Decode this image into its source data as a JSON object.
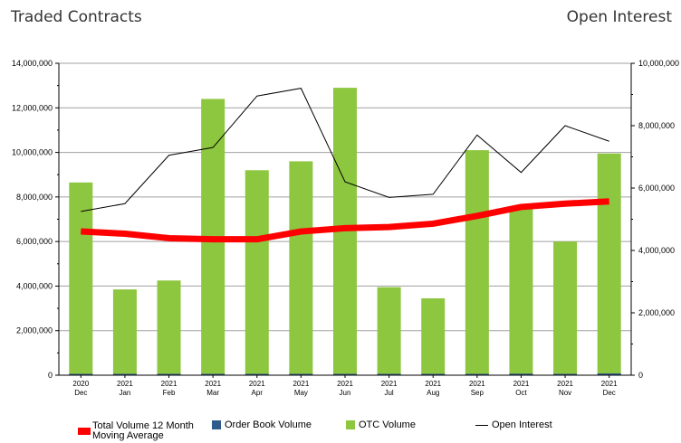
{
  "header": {
    "left_title": "Traded Contracts",
    "right_title": "Open Interest"
  },
  "chart_data": {
    "type": "bar",
    "categories": [
      [
        "2020",
        "Dec"
      ],
      [
        "2021",
        "Jan"
      ],
      [
        "2021",
        "Feb"
      ],
      [
        "2021",
        "Mar"
      ],
      [
        "2021",
        "Apr"
      ],
      [
        "2021",
        "May"
      ],
      [
        "2021",
        "Jun"
      ],
      [
        "2021",
        "Jul"
      ],
      [
        "2021",
        "Aug"
      ],
      [
        "2021",
        "Sep"
      ],
      [
        "2021",
        "Oct"
      ],
      [
        "2021",
        "Nov"
      ],
      [
        "2021",
        "Dec"
      ]
    ],
    "left_axis": {
      "min": 0,
      "max": 14000000,
      "ticks": [
        "0",
        "2,000,000",
        "4,000,000",
        "6,000,000",
        "8,000,000",
        "10,000,000",
        "12,000,000",
        "14,000,000"
      ]
    },
    "right_axis": {
      "min": 0,
      "max": 10000000,
      "ticks": [
        "0",
        "2,000,000",
        "4,000,000",
        "6,000,000",
        "8,000,000",
        "10,000,000"
      ]
    },
    "grid": true,
    "series": [
      {
        "name": "OTC Volume",
        "kind": "bar",
        "axis": "left",
        "color": "#8dc63f",
        "values": [
          8650000,
          3850000,
          4250000,
          12400000,
          9200000,
          9600000,
          12900000,
          3950000,
          3450000,
          10100000,
          7550000,
          6000000,
          9950000
        ]
      },
      {
        "name": "Order Book Volume",
        "kind": "bar",
        "axis": "left",
        "color": "#2f5b8c",
        "values": [
          40000,
          60000,
          40000,
          30000,
          40000,
          60000,
          50000,
          30000,
          40000,
          40000,
          70000,
          50000,
          80000
        ]
      },
      {
        "name": "Total Volume 12 Month Moving Average",
        "kind": "line",
        "axis": "left",
        "color": "#ff0000",
        "values": [
          6450000,
          6350000,
          6150000,
          6100000,
          6100000,
          6450000,
          6600000,
          6650000,
          6800000,
          7150000,
          7550000,
          7700000,
          7800000
        ]
      },
      {
        "name": "Open Interest",
        "kind": "line",
        "axis": "right",
        "color": "#000000",
        "values": [
          5250000,
          5500000,
          7050000,
          7300000,
          8950000,
          9200000,
          6200000,
          5700000,
          5800000,
          7700000,
          6500000,
          8000000,
          7500000
        ]
      }
    ],
    "legend_position": "bottom"
  },
  "legend": [
    {
      "label_line1": "Total Volume 12 Month",
      "label_line2": "Moving Average",
      "swatch": "thick-line",
      "color": "#ff0000"
    },
    {
      "label": "Order Book Volume",
      "swatch": "square",
      "color": "#2f5b8c"
    },
    {
      "label": "OTC Volume",
      "swatch": "square",
      "color": "#8dc63f"
    },
    {
      "label": "Open Interest",
      "swatch": "line",
      "color": "#000000"
    }
  ]
}
